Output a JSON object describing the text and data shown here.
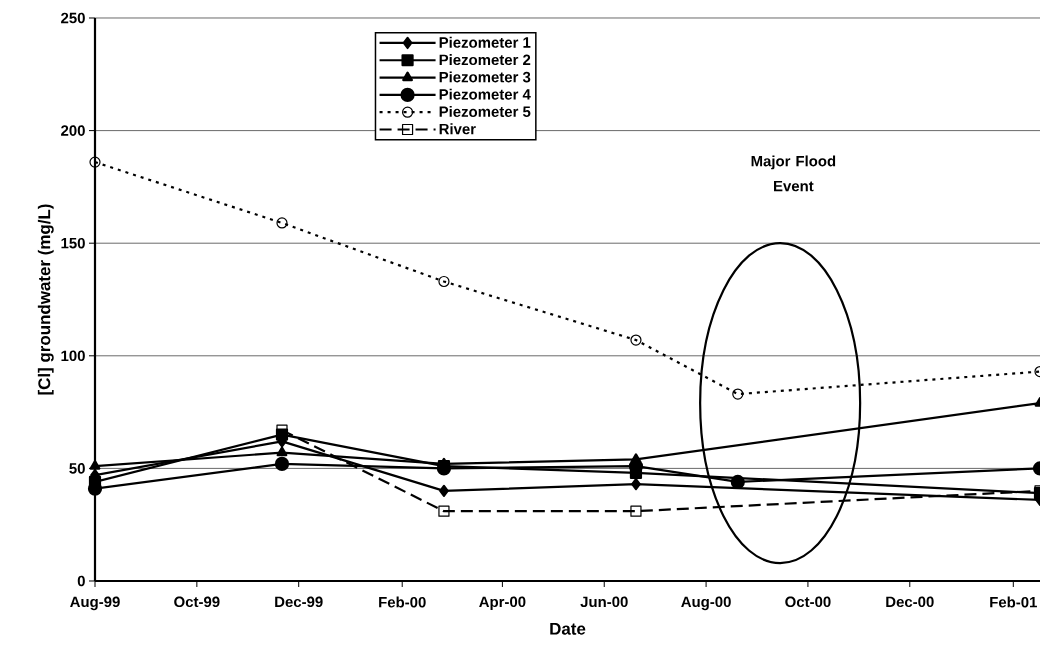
{
  "chart_data": {
    "type": "line",
    "xlabel": "Date",
    "ylabel": "[Cl] groundwater (mg/L)",
    "xlim": [
      "1999-08-01",
      "2001-02-17"
    ],
    "xticks": [
      {
        "value": "1999-08-01",
        "label": "Aug-99"
      },
      {
        "value": "1999-10-01",
        "label": "Oct-99"
      },
      {
        "value": "1999-12-01",
        "label": "Dec-99"
      },
      {
        "value": "2000-02-01",
        "label": "Feb-00"
      },
      {
        "value": "2000-04-01",
        "label": "Apr-00"
      },
      {
        "value": "2000-06-01",
        "label": "Jun-00"
      },
      {
        "value": "2000-08-01",
        "label": "Aug-00"
      },
      {
        "value": "2000-10-01",
        "label": "Oct-00"
      },
      {
        "value": "2000-12-01",
        "label": "Dec-00"
      },
      {
        "value": "2001-02-01",
        "label": "Feb-01"
      }
    ],
    "ylim": [
      0,
      250
    ],
    "yticks": [
      0,
      50,
      100,
      150,
      200,
      250
    ],
    "grid": "y",
    "legend": "top",
    "series": [
      {
        "name": "Piezometer 1",
        "color": "#000000",
        "marker": "diamond",
        "line_style": "solid",
        "x": [
          "1999-08-01",
          "1999-11-21",
          "2000-02-26",
          "2000-06-20",
          "2001-02-17"
        ],
        "values": [
          47,
          62,
          40,
          43,
          36
        ]
      },
      {
        "name": "Piezometer 2",
        "color": "#000000",
        "marker": "square",
        "line_style": "solid",
        "x": [
          "1999-08-01",
          "1999-11-21",
          "2000-02-26",
          "2000-06-20",
          "2001-02-17"
        ],
        "values": [
          44,
          65,
          51,
          48,
          39
        ]
      },
      {
        "name": "Piezometer 3",
        "color": "#000000",
        "marker": "triangle",
        "line_style": "solid",
        "x": [
          "1999-08-01",
          "1999-11-21",
          "2000-02-26",
          "2000-06-20",
          "2001-02-17"
        ],
        "values": [
          51,
          57,
          52,
          54,
          79
        ]
      },
      {
        "name": "Piezometer 4",
        "color": "#000000",
        "marker": "circle",
        "line_style": "solid",
        "x": [
          "1999-08-01",
          "1999-11-21",
          "2000-02-26",
          "2000-06-20",
          "2000-08-20",
          "2001-02-17"
        ],
        "values": [
          41,
          52,
          50,
          51,
          44,
          50
        ]
      },
      {
        "name": "Piezometer 5",
        "color": "#000000",
        "marker": "circle",
        "line_style": "dotted",
        "x": [
          "1999-08-01",
          "1999-11-21",
          "2000-02-26",
          "2000-06-20",
          "2000-08-20",
          "2001-02-17"
        ],
        "values": [
          186,
          159,
          133,
          107,
          83,
          93
        ]
      },
      {
        "name": "River",
        "color": "#000000",
        "marker": "square",
        "line_style": "dashed",
        "x": [
          "1999-11-21",
          "2000-02-26",
          "2000-06-20",
          "2001-02-17"
        ],
        "values": [
          67,
          31,
          31,
          40
        ]
      }
    ],
    "annotations": [
      "Major Flood Event"
    ]
  }
}
